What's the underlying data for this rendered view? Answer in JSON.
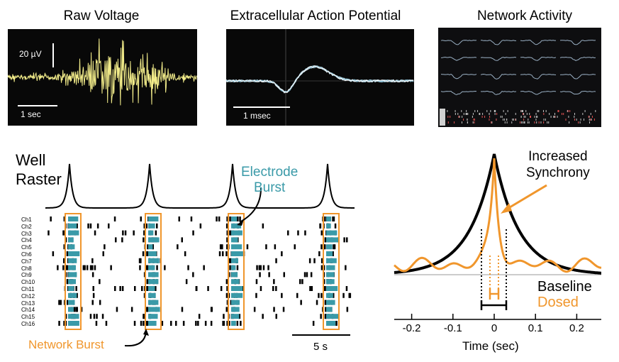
{
  "panels": {
    "raw": {
      "title": "Raw Voltage",
      "scale_v": "20 µV",
      "scale_t": "1 sec"
    },
    "eap": {
      "title": "Extracellular Action Potential",
      "scale_t": "1 msec"
    },
    "network": {
      "title": "Network Activity"
    }
  },
  "raster": {
    "title_line1": "Well",
    "title_line2": "Raster",
    "channels": [
      "Ch1",
      "Ch2",
      "Ch3",
      "Ch4",
      "Ch5",
      "Ch6",
      "Ch7",
      "Ch8",
      "Ch9",
      "Ch10",
      "Ch11",
      "Ch12",
      "Ch13",
      "Ch14",
      "Ch15",
      "Ch16"
    ],
    "electrode_burst_line1": "Electrode",
    "electrode_burst_line2": "Burst",
    "network_burst": "Network Burst",
    "scale": "5 s",
    "colors": {
      "teal": "#3a9aa8",
      "orange": "#f0962c"
    }
  },
  "sync": {
    "annotation_line1": "Increased",
    "annotation_line2": "Synchrony",
    "legend_baseline": "Baseline",
    "legend_dosed": "Dosed",
    "xlabel": "Time (sec)",
    "xticks": [
      "-0.2",
      "-0.1",
      "0",
      "0.1",
      "0.2"
    ],
    "colors": {
      "baseline": "#000000",
      "dosed": "#f0962c"
    }
  }
}
